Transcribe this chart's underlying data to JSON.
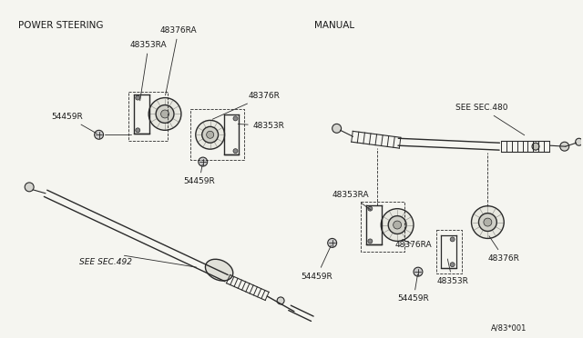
{
  "background_color": "#f5f5f0",
  "line_color": "#2a2a2a",
  "text_color": "#1a1a1a",
  "label_fontsize": 6.5,
  "section_label_fontsize": 7.5,
  "fig_width": 6.4,
  "fig_height": 3.72,
  "dpi": 100,
  "left_section_label": "POWER STEERING",
  "right_section_label": "MANUAL",
  "footer_text": "A/83*001"
}
